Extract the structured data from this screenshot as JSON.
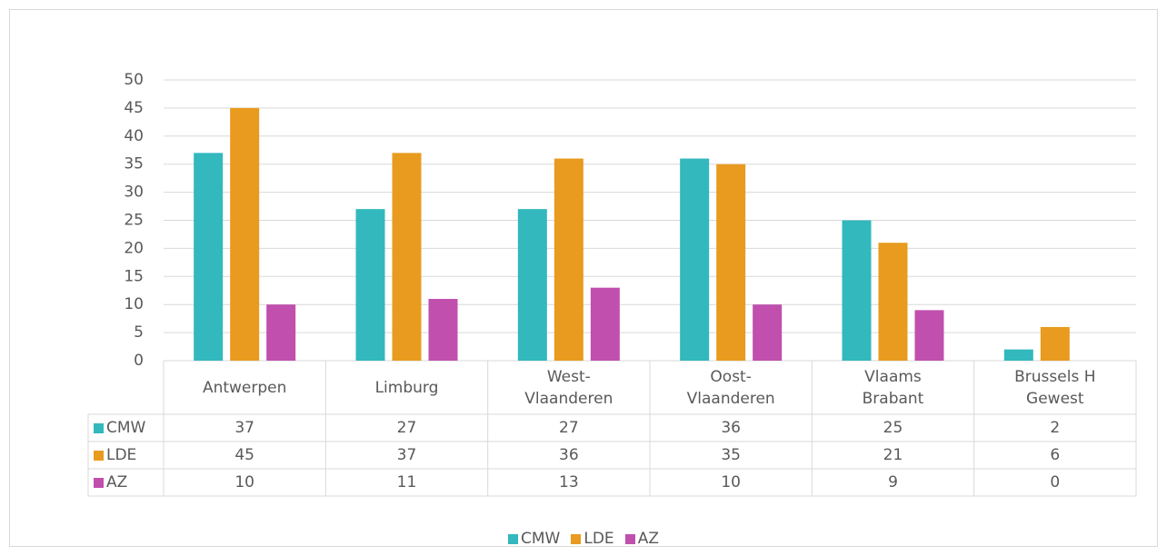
{
  "chart_data": {
    "type": "bar",
    "categories": [
      "Antwerpen",
      "Limburg",
      "West-Vlaanderen",
      "Oost-Vlaanderen",
      "Vlaams Brabant",
      "Brussels H Gewest"
    ],
    "series": [
      {
        "name": "CMW",
        "color": "#32b8bd",
        "values": [
          37,
          27,
          27,
          36,
          25,
          2
        ]
      },
      {
        "name": "LDE",
        "color": "#e89b1f",
        "values": [
          45,
          37,
          36,
          35,
          21,
          6
        ]
      },
      {
        "name": "AZ",
        "color": "#c04fae",
        "values": [
          10,
          11,
          13,
          10,
          9,
          0
        ]
      }
    ],
    "ylim": [
      0,
      50
    ],
    "yticks": [
      0,
      5,
      10,
      15,
      20,
      25,
      30,
      35,
      40,
      45,
      50
    ],
    "grid": true,
    "data_table": true,
    "legend": "bottom"
  }
}
